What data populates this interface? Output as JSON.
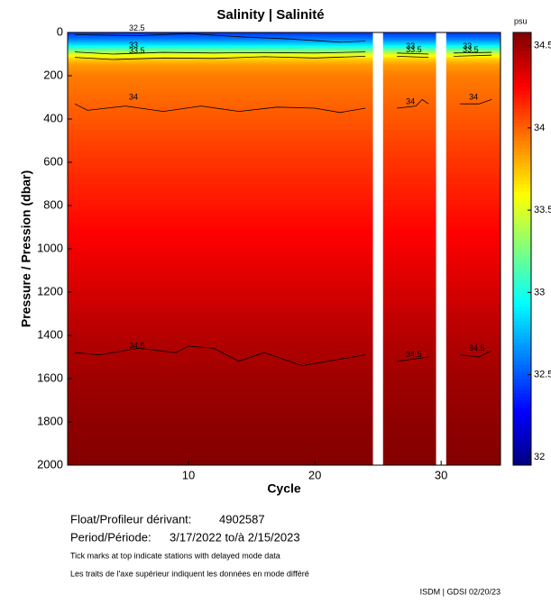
{
  "chart_data": {
    "type": "contour",
    "title": "Salinity | Salinité",
    "x_label": "Cycle",
    "y_label": "Pressure / Pression (dbar)",
    "xlim": [
      0.43,
      34.7
    ],
    "xticks": [
      10,
      20,
      30
    ],
    "ylim": [
      0,
      2000
    ],
    "yticks": [
      0,
      200,
      400,
      600,
      800,
      1000,
      1200,
      1400,
      1600,
      1800,
      2000
    ],
    "colorbar": {
      "unit": "psu",
      "clim": [
        31.95,
        34.58
      ],
      "ticks": [
        32,
        32.5,
        33,
        33.5,
        34,
        34.5
      ]
    },
    "profile": {
      "pressure": [
        0,
        30,
        60,
        80,
        100,
        120,
        150,
        200,
        300,
        400,
        600,
        800,
        1000,
        1200,
        1400,
        1600,
        1800,
        2000
      ],
      "salinity": [
        32.4,
        32.6,
        32.9,
        33.2,
        33.5,
        33.7,
        33.85,
        33.93,
        33.98,
        34.03,
        34.12,
        34.2,
        34.28,
        34.36,
        34.44,
        34.5,
        34.54,
        34.57
      ]
    },
    "missing_cycles": [
      25,
      30
    ],
    "contours": [
      {
        "level": 32.5,
        "x": [
          1,
          6,
          10,
          14,
          18,
          22,
          24
        ],
        "y": [
          10,
          15,
          5,
          20,
          30,
          45,
          40
        ]
      },
      {
        "level": 33,
        "x": [
          1,
          4,
          8,
          12,
          16,
          20,
          24,
          25,
          26.5,
          29,
          30,
          31,
          34
        ],
        "y": [
          90,
          100,
          92,
          95,
          93,
          95,
          90,
          null,
          95,
          100,
          null,
          95,
          92
        ]
      },
      {
        "level": 33.5,
        "x": [
          1,
          4,
          8,
          12,
          16,
          20,
          24,
          25,
          26.5,
          29,
          30,
          31,
          34
        ],
        "y": [
          115,
          125,
          118,
          120,
          112,
          118,
          110,
          null,
          110,
          115,
          null,
          110,
          105
        ]
      },
      {
        "level": 34,
        "x": [
          1,
          2,
          5,
          8,
          11,
          14,
          17,
          20,
          22,
          24,
          25,
          26.5,
          28,
          28.5,
          29,
          30,
          31.5,
          33,
          34
        ],
        "y": [
          330,
          360,
          340,
          365,
          340,
          365,
          345,
          350,
          370,
          350,
          null,
          350,
          340,
          310,
          330,
          null,
          330,
          330,
          310
        ]
      },
      {
        "level": 34.5,
        "x": [
          1,
          3,
          6,
          9,
          10,
          12,
          14,
          16,
          19,
          22,
          24,
          25,
          26.5,
          29,
          30,
          31.5,
          33,
          34
        ],
        "y": [
          1480,
          1490,
          1460,
          1480,
          1450,
          1460,
          1520,
          1480,
          1540,
          1510,
          1490,
          null,
          1520,
          1500,
          null,
          1490,
          1500,
          1470
        ]
      }
    ],
    "float_label": "Float/Profileur dérivant:",
    "float_id": "4902587",
    "period_label": "Period/Période:",
    "period": "3/17/2022  to/à  2/15/2023",
    "note_en": "Tick marks at top indicate stations with delayed mode data",
    "note_fr": "Les traits de l'axe supérieur indiquent les données en mode différé",
    "credit": "ISDM | GDSI  02/20/23"
  }
}
